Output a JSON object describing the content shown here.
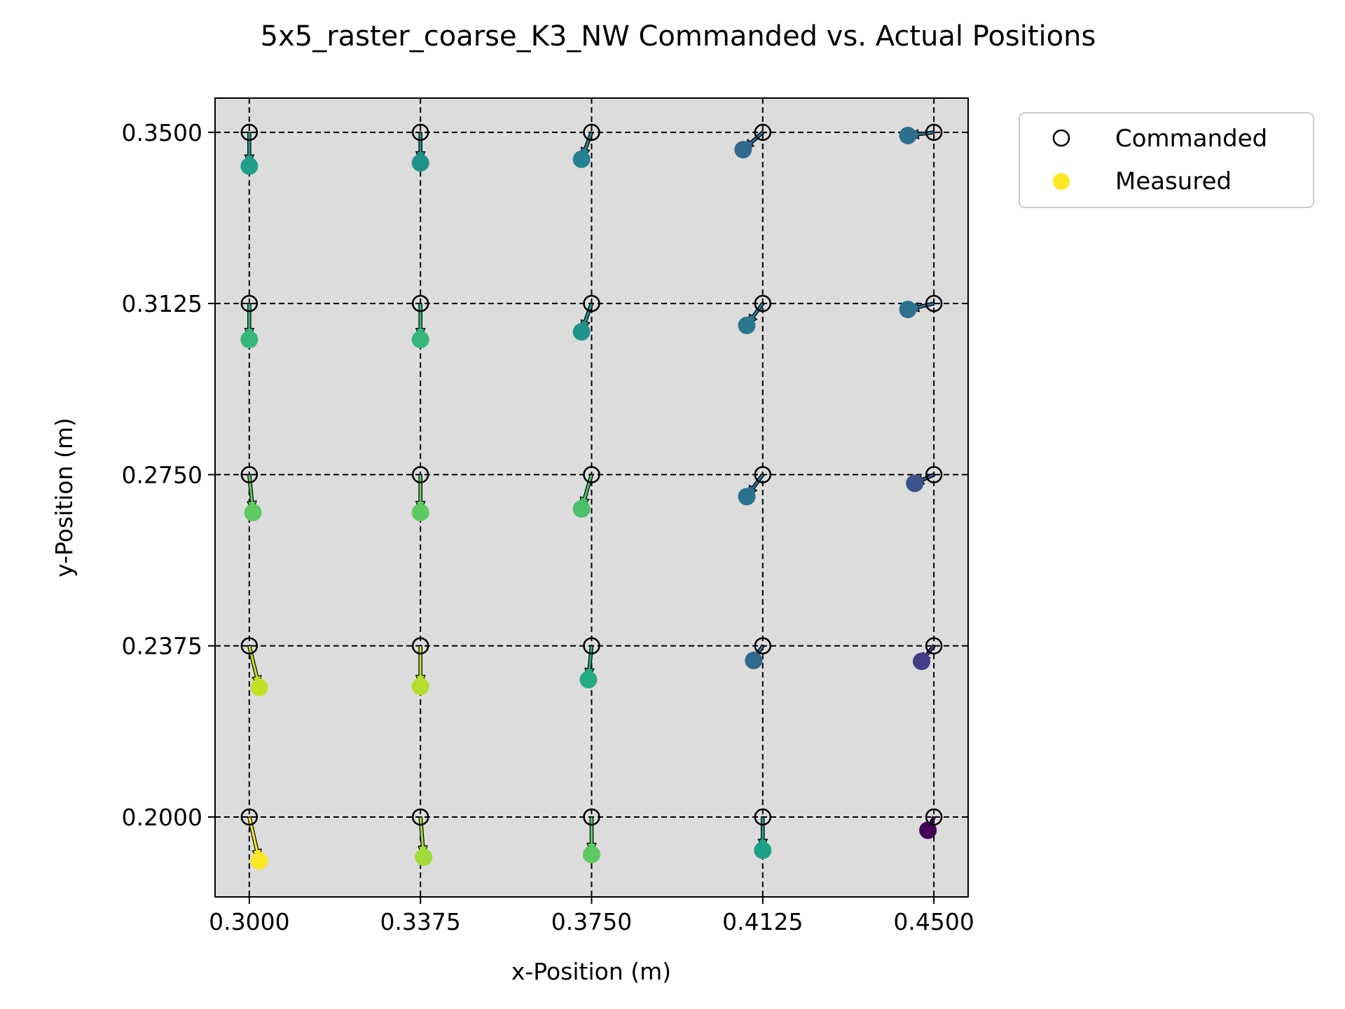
{
  "chart_data": {
    "type": "scatter",
    "title": "5x5_raster_coarse_K3_NW Commanded vs. Actual Positions",
    "xlabel": "x-Position (m)",
    "ylabel": "y-Position (m)",
    "xlim": [
      0.2925,
      0.4575
    ],
    "ylim": [
      0.1825,
      0.3575
    ],
    "xticks": [
      "0.3000",
      "0.3375",
      "0.3750",
      "0.4125",
      "0.4500"
    ],
    "yticks": [
      "0.2000",
      "0.2375",
      "0.2750",
      "0.3125",
      "0.3500"
    ],
    "grid": true,
    "legend_placement": "outside-top-right",
    "plot_background": "#dcdcdc",
    "legend": [
      {
        "label": "Commanded",
        "marker": "open-circle"
      },
      {
        "label": "Measured",
        "marker": "filled-circle",
        "color": "#fde725"
      }
    ],
    "series": [
      {
        "name": "Commanded",
        "points": [
          [
            0.3,
            0.35
          ],
          [
            0.3375,
            0.35
          ],
          [
            0.375,
            0.35
          ],
          [
            0.4125,
            0.35
          ],
          [
            0.45,
            0.35
          ],
          [
            0.3,
            0.3125
          ],
          [
            0.3375,
            0.3125
          ],
          [
            0.375,
            0.3125
          ],
          [
            0.4125,
            0.3125
          ],
          [
            0.45,
            0.3125
          ],
          [
            0.3,
            0.275
          ],
          [
            0.3375,
            0.275
          ],
          [
            0.375,
            0.275
          ],
          [
            0.4125,
            0.275
          ],
          [
            0.45,
            0.275
          ],
          [
            0.3,
            0.2375
          ],
          [
            0.3375,
            0.2375
          ],
          [
            0.375,
            0.2375
          ],
          [
            0.4125,
            0.2375
          ],
          [
            0.45,
            0.2375
          ],
          [
            0.3,
            0.2
          ],
          [
            0.3375,
            0.2
          ],
          [
            0.375,
            0.2
          ],
          [
            0.4125,
            0.2
          ],
          [
            0.45,
            0.2
          ]
        ]
      },
      {
        "name": "Measured",
        "points": [
          [
            0.3,
            0.3426,
            "#1f9e89"
          ],
          [
            0.3375,
            0.3433,
            "#21918c"
          ],
          [
            0.3728,
            0.3441,
            "#26828e"
          ],
          [
            0.4082,
            0.3462,
            "#31688e"
          ],
          [
            0.4443,
            0.3493,
            "#2e6e8e"
          ],
          [
            0.3,
            0.3046,
            "#35b779"
          ],
          [
            0.3375,
            0.3046,
            "#35b779"
          ],
          [
            0.3728,
            0.3063,
            "#21918c"
          ],
          [
            0.409,
            0.3077,
            "#2a788e"
          ],
          [
            0.4443,
            0.3112,
            "#2c728e"
          ],
          [
            0.3008,
            0.2667,
            "#5ec962"
          ],
          [
            0.3375,
            0.2667,
            "#5ec962"
          ],
          [
            0.3728,
            0.2675,
            "#4ac16d"
          ],
          [
            0.409,
            0.2702,
            "#2c728e"
          ],
          [
            0.4458,
            0.2731,
            "#3b528b"
          ],
          [
            0.3022,
            0.2284,
            "#c2df23"
          ],
          [
            0.3375,
            0.2286,
            "#b5de2b"
          ],
          [
            0.3743,
            0.2301,
            "#25ab82"
          ],
          [
            0.4105,
            0.2343,
            "#31688e"
          ],
          [
            0.4473,
            0.2341,
            "#433e85"
          ],
          [
            0.3022,
            0.1904,
            "#fde725"
          ],
          [
            0.3382,
            0.1912,
            "#a0da39"
          ],
          [
            0.375,
            0.1918,
            "#5ec962"
          ],
          [
            0.4125,
            0.1927,
            "#1fa187"
          ],
          [
            0.4487,
            0.1971,
            "#440154"
          ]
        ]
      }
    ]
  }
}
